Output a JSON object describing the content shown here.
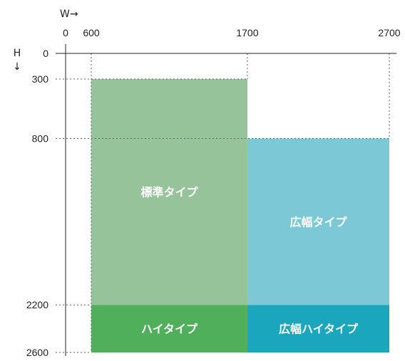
{
  "axes": {
    "x_label": "W→",
    "y_label_top": "H",
    "y_label_arrow": "↓",
    "x_ticks": [
      0,
      600,
      1700,
      2700
    ],
    "y_ticks": [
      0,
      300,
      800,
      2200,
      2600
    ]
  },
  "regions": [
    {
      "id": "standard",
      "label": "標準タイプ",
      "x0": 600,
      "x1": 1700,
      "y0": 300,
      "y1": 2200,
      "color": "#96c399"
    },
    {
      "id": "wide",
      "label": "広幅タイプ",
      "x0": 1700,
      "x1": 2700,
      "y0": 800,
      "y1": 2200,
      "color": "#7cc8d6"
    },
    {
      "id": "high",
      "label": "ハイタイプ",
      "x0": 600,
      "x1": 1700,
      "y0": 2200,
      "y1": 2600,
      "color": "#4faf5a"
    },
    {
      "id": "wide-high",
      "label": "広幅ハイタイプ",
      "x0": 1700,
      "x1": 2700,
      "y0": 2200,
      "y1": 2600,
      "color": "#1aa6bd"
    }
  ],
  "colors": {
    "axis": "#222222",
    "guide": "#666666"
  }
}
